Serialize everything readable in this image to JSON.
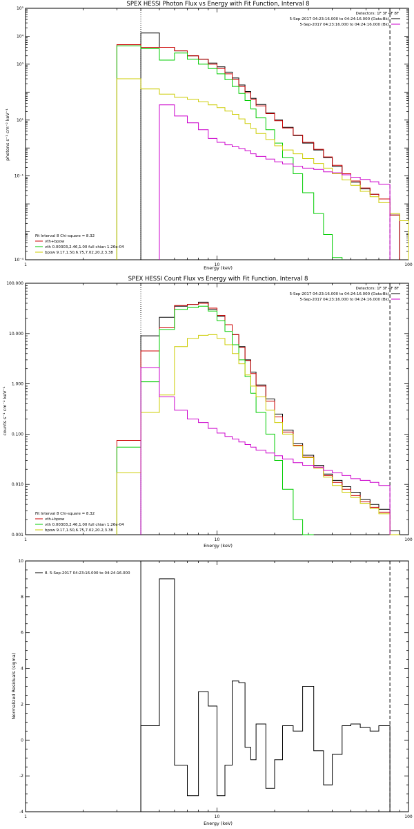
{
  "colors": {
    "total": "#000000",
    "fit": "#cc0000",
    "vth": "#00cc00",
    "bpow": "#cccc00",
    "bk": "#cc00cc"
  },
  "chart_data": [
    {
      "type": "line",
      "title": "SPEX HESSI Photon Flux vs Energy with Fit Function, Interval 8",
      "xlabel": "Energy (keV)",
      "ylabel": "photons s⁻¹ cm⁻² keV⁻¹",
      "xscale": "log",
      "yscale": "log",
      "xlim": [
        1,
        100
      ],
      "ylim": [
        0.0001,
        100000
      ],
      "x_tick_labels": [
        "1",
        "10",
        "100"
      ],
      "y_tick_labels": [
        "10⁻⁴",
        "10⁻¹",
        "10¹",
        "10³",
        "10⁴",
        "10⁵"
      ],
      "y_tick_values": [
        0.0001,
        0.1,
        10,
        1000,
        10000,
        100000
      ],
      "x_edges": [
        3.0,
        4.0,
        5.0,
        6.0,
        7.0,
        8.0,
        9.0,
        10.0,
        11.0,
        12.0,
        13.0,
        14.0,
        15.0,
        16.0,
        18.0,
        20.0,
        22.0,
        25.0,
        28.0,
        32.0,
        36.0,
        40.0,
        45.0,
        50.0,
        56.0,
        63.0,
        70.0,
        80.0,
        90.0,
        100.0
      ],
      "legend_top": {
        "detectors": "Detectors: 1F 3F 4F 8F",
        "entries": [
          {
            "label": "5-Sep-2017 04:23:16.000 to 04:24:16.000 (Data-Bk)",
            "color": "#000000"
          },
          {
            "label": "5-Sep-2017 04:23:16.000 to 04:24:16.000 (Bk)",
            "color": "#cc00cc"
          }
        ]
      },
      "legend_bottom": {
        "header": "Fit Interval 8   Chi-square = 8.32",
        "entries": [
          {
            "label": "vth+bpow",
            "color": "#cc0000"
          },
          {
            "label": "vth 0.00303,2.46,1.00  full chian 1.26e-04",
            "color": "#00cc00"
          },
          {
            "label": "bpow 9.17,1.50,6.75,7.02,20.2,3.38",
            "color": "#cccc00"
          }
        ]
      },
      "vlines": [
        {
          "x": 4.0,
          "style": "dotted"
        },
        {
          "x": 80.0,
          "style": "dashed"
        }
      ],
      "series": [
        {
          "name": "Data-Bk",
          "color": "#000000",
          "values": [
            null,
            13000,
            4000,
            3000,
            2000,
            1500,
            1100,
            800,
            520,
            320,
            180,
            105,
            60,
            36,
            18,
            10,
            5.5,
            2.8,
            1.5,
            0.85,
            0.45,
            0.22,
            0.11,
            0.06,
            0.035,
            0.022,
            0.015,
            0.004,
            null
          ]
        },
        {
          "name": "vth+bpow",
          "color": "#cc0000",
          "values": [
            5000,
            4000,
            4000,
            3000,
            2000,
            1500,
            1000,
            700,
            450,
            280,
            160,
            95,
            55,
            32,
            17,
            9.5,
            5.2,
            2.9,
            1.6,
            0.9,
            0.48,
            0.24,
            0.12,
            0.066,
            0.037,
            0.022,
            0.015,
            0.004,
            null
          ]
        },
        {
          "name": "vth",
          "color": "#00cc00",
          "values": [
            4500,
            3600,
            1400,
            2500,
            1500,
            1000,
            700,
            450,
            280,
            160,
            90,
            50,
            25,
            12,
            4.5,
            1.5,
            0.45,
            0.12,
            0.025,
            0.0045,
            0.0008,
            0.00012,
            null,
            null,
            null,
            null,
            null,
            null,
            null
          ]
        },
        {
          "name": "bpow",
          "color": "#cccc00",
          "values": [
            300,
            130,
            85,
            65,
            55,
            45,
            35,
            28,
            21,
            16,
            11,
            7.5,
            5.0,
            3.3,
            2.0,
            1.2,
            0.85,
            0.62,
            0.42,
            0.28,
            0.19,
            0.12,
            0.072,
            0.046,
            0.028,
            0.018,
            0.011,
            0.0045,
            0.0025
          ]
        },
        {
          "name": "Bk",
          "color": "#cc00cc",
          "values": [
            null,
            null,
            35,
            14,
            8,
            4.5,
            2.2,
            1.6,
            1.3,
            1.1,
            0.95,
            0.8,
            0.62,
            0.5,
            0.4,
            0.32,
            0.27,
            0.22,
            0.19,
            0.17,
            0.14,
            0.13,
            0.11,
            0.09,
            0.075,
            0.062,
            0.05,
            null,
            null
          ]
        }
      ]
    },
    {
      "type": "line",
      "title": "SPEX HESSI Count Flux vs Energy with Fit Function, Interval 8",
      "xlabel": "Energy (keV)",
      "ylabel": "counts s⁻¹ cm⁻² keV⁻¹",
      "xscale": "log",
      "yscale": "log",
      "xlim": [
        1,
        100
      ],
      "ylim": [
        0.001,
        100
      ],
      "x_tick_labels": [
        "1",
        "10",
        "100"
      ],
      "y_tick_labels": [
        "0.001",
        "0.010",
        "0.100",
        "1.000",
        "10.000",
        "100.000"
      ],
      "y_tick_values": [
        0.001,
        0.01,
        0.1,
        1,
        10,
        100
      ],
      "x_edges": [
        3.0,
        4.0,
        5.0,
        6.0,
        7.0,
        8.0,
        9.0,
        10.0,
        11.0,
        12.0,
        13.0,
        14.0,
        15.0,
        16.0,
        18.0,
        20.0,
        22.0,
        25.0,
        28.0,
        32.0,
        36.0,
        40.0,
        45.0,
        50.0,
        56.0,
        63.0,
        70.0,
        80.0,
        90.0,
        100.0
      ],
      "legend_top": {
        "detectors": "Detectors: 1F 3F 4F 8F",
        "entries": [
          {
            "label": "5-Sep-2017 04:23:16.000 to 04:24:16.000 (Data-Bk)",
            "color": "#000000"
          },
          {
            "label": "5-Sep-2017 04:23:16.000 to 04:24:16.000 (Bk)",
            "color": "#cc00cc"
          }
        ]
      },
      "legend_bottom": {
        "header": "Fit Interval 8   Chi-square = 8.32",
        "entries": [
          {
            "label": "vth+bpow",
            "color": "#cc0000"
          },
          {
            "label": "vth 0.00303,2.46,1.00  full chian 1.26e-04",
            "color": "#00cc00"
          },
          {
            "label": "bpow 9.17,1.50,6.75,7.02,20.2,3.38",
            "color": "#cccc00"
          }
        ]
      },
      "vlines": [
        {
          "x": 4.0,
          "style": "dotted"
        },
        {
          "x": 80.0,
          "style": "dashed"
        }
      ],
      "series": [
        {
          "name": "Data-Bk",
          "color": "#000000",
          "values": [
            null,
            9.0,
            21.0,
            35.0,
            38.0,
            42.0,
            30.0,
            22.0,
            15.0,
            9.5,
            5.5,
            3.0,
            1.7,
            0.95,
            0.5,
            0.25,
            0.12,
            0.065,
            0.038,
            0.024,
            0.016,
            0.012,
            0.009,
            0.007,
            0.005,
            0.004,
            0.0032,
            0.0012,
            null
          ]
        },
        {
          "name": "vth+bpow",
          "color": "#cc0000",
          "values": [
            0.075,
            4.5,
            13.0,
            36.0,
            38.0,
            40.0,
            32.0,
            23.0,
            15.0,
            9.5,
            5.3,
            2.9,
            1.6,
            0.9,
            0.45,
            0.22,
            0.11,
            0.06,
            0.035,
            0.022,
            0.015,
            0.011,
            0.008,
            0.006,
            0.0045,
            0.0035,
            0.0028,
            0.001,
            null
          ]
        },
        {
          "name": "vth",
          "color": "#00cc00",
          "values": [
            0.055,
            1.1,
            12.0,
            30.0,
            33.0,
            35.0,
            28.0,
            18.0,
            11.0,
            6.0,
            3.0,
            1.4,
            0.65,
            0.27,
            0.1,
            0.03,
            0.008,
            0.002,
            0.0006,
            null,
            null,
            null,
            null,
            null,
            null,
            null,
            null,
            null,
            null
          ]
        },
        {
          "name": "bpow",
          "color": "#cccc00",
          "values": [
            0.017,
            0.27,
            0.6,
            5.5,
            8.0,
            9.2,
            9.5,
            8.0,
            6.0,
            4.0,
            2.5,
            1.5,
            0.9,
            0.55,
            0.3,
            0.17,
            0.1,
            0.058,
            0.034,
            0.021,
            0.014,
            0.0095,
            0.007,
            0.0055,
            0.0042,
            0.0033,
            0.0026,
            0.001,
            null
          ]
        },
        {
          "name": "Bk",
          "color": "#cc00cc",
          "values": [
            null,
            2.1,
            0.55,
            0.3,
            0.2,
            0.17,
            0.13,
            0.105,
            0.09,
            0.08,
            0.07,
            0.062,
            0.055,
            0.048,
            0.042,
            0.037,
            0.032,
            0.027,
            0.024,
            0.022,
            0.019,
            0.017,
            0.015,
            0.013,
            0.012,
            0.011,
            0.0095,
            null,
            null
          ]
        }
      ]
    },
    {
      "type": "line",
      "title": "",
      "xlabel": "Energy (keV)",
      "ylabel": "Normalized Residuals (sigma)",
      "xscale": "log",
      "yscale": "linear",
      "xlim": [
        1,
        100
      ],
      "ylim": [
        -4,
        10
      ],
      "x_tick_labels": [
        "1",
        "10",
        "100"
      ],
      "y_tick_labels": [
        "-4",
        "-2",
        "0",
        "2",
        "4",
        "6",
        "8",
        "10"
      ],
      "y_tick_values": [
        -4,
        -2,
        0,
        2,
        4,
        6,
        8,
        10
      ],
      "x_edges": [
        4.0,
        5.0,
        6.0,
        7.0,
        8.0,
        9.0,
        10.0,
        11.0,
        12.0,
        13.0,
        14.0,
        15.0,
        16.0,
        18.0,
        20.0,
        22.0,
        25.0,
        28.0,
        32.0,
        36.0,
        40.0,
        45.0,
        50.0,
        56.0,
        63.0,
        70.0,
        80.0
      ],
      "legend_top_left": {
        "label": "8. 5-Sep-2017 04:23:16.000 to 04:24:16.000",
        "color": "#000000"
      },
      "vlines": [
        {
          "x": 4.0,
          "style": "solid"
        },
        {
          "x": 80.0,
          "style": "dashed"
        }
      ],
      "series": [
        {
          "name": "Residuals",
          "color": "#000000",
          "values": [
            0.8,
            9.0,
            -1.4,
            -3.1,
            2.7,
            1.9,
            -3.1,
            -1.4,
            3.3,
            3.2,
            -0.4,
            -1.1,
            0.9,
            -2.7,
            -1.1,
            0.8,
            0.5,
            3.0,
            -0.6,
            -2.5,
            -0.8,
            0.8,
            0.9,
            0.7,
            0.5,
            0.8
          ]
        }
      ]
    }
  ]
}
